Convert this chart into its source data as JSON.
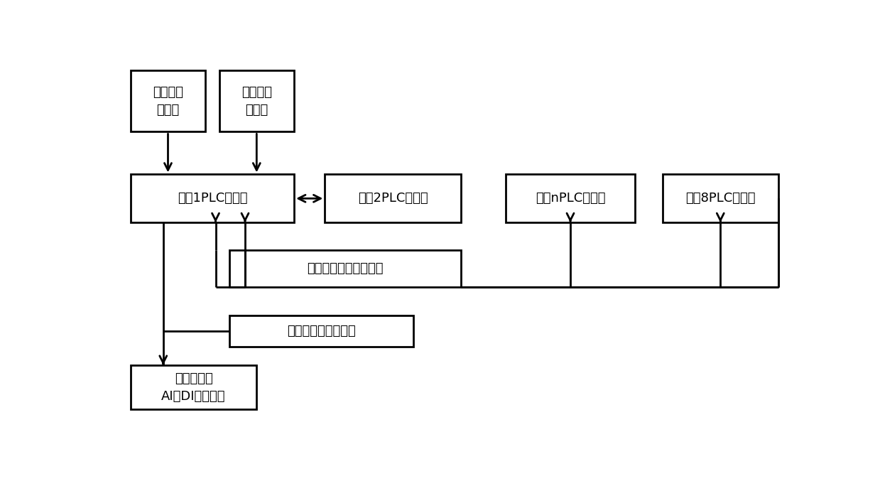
{
  "bg": "#ffffff",
  "ec": "#000000",
  "labels": {
    "s1": "回水温度\n传感器",
    "s2": "室外温度\n传感器",
    "p1": "机组1PLC控制器",
    "p2": "机组2PLC控制器",
    "pn": "机组nPLC控制器",
    "p8": "机组8PLC控制器",
    "la": "机组间局域网数据通讯",
    "sw": "开关量和模拟量输出",
    "pm": "水泵变频器\nAI和DI输入单元"
  },
  "boxes": {
    "s1": [
      0.03,
      0.8,
      0.11,
      0.165
    ],
    "s2": [
      0.16,
      0.8,
      0.11,
      0.165
    ],
    "p1": [
      0.03,
      0.555,
      0.24,
      0.13
    ],
    "p2": [
      0.315,
      0.555,
      0.2,
      0.13
    ],
    "pn": [
      0.58,
      0.555,
      0.19,
      0.13
    ],
    "p8": [
      0.81,
      0.555,
      0.17,
      0.13
    ],
    "la": [
      0.175,
      0.38,
      0.34,
      0.1
    ],
    "sw": [
      0.175,
      0.22,
      0.27,
      0.085
    ],
    "pm": [
      0.03,
      0.05,
      0.185,
      0.12
    ]
  },
  "fs": 13,
  "lw": 2.0
}
